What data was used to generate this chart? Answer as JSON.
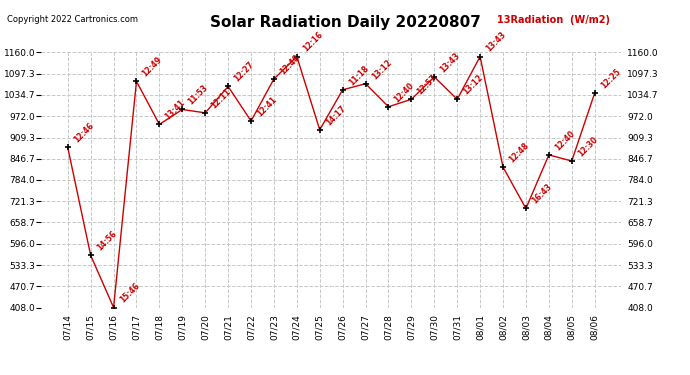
{
  "title": "Solar Radiation Daily 20220807",
  "copyright": "Copyright 2022 Cartronics.com",
  "legend_label": "13Radiation  (W/m2)",
  "background_color": "#ffffff",
  "grid_color": "#c8c8c8",
  "line_color": "#cc0000",
  "text_color": "#cc0000",
  "title_color": "#000000",
  "dates": [
    "07/14",
    "07/15",
    "07/16",
    "07/17",
    "07/18",
    "07/19",
    "07/20",
    "07/21",
    "07/22",
    "07/23",
    "07/24",
    "07/25",
    "07/26",
    "07/27",
    "07/28",
    "07/29",
    "07/30",
    "07/31",
    "08/01",
    "08/02",
    "08/03",
    "08/04",
    "08/05",
    "08/06"
  ],
  "values": [
    880.0,
    562.0,
    408.0,
    1075.0,
    948.0,
    992.0,
    982.0,
    1060.0,
    958.0,
    1082.0,
    1148.0,
    932.0,
    1050.0,
    1068.0,
    1000.0,
    1022.0,
    1088.0,
    1022.0,
    1148.0,
    822.0,
    700.0,
    858.0,
    840.0,
    1040.0
  ],
  "labels": [
    "12:46",
    "14:56",
    "15:46",
    "12:49",
    "13:41",
    "11:53",
    "12:11",
    "12:27",
    "12:41",
    "12:48",
    "12:16",
    "14:17",
    "11:18",
    "13:12",
    "12:40",
    "12:57",
    "13:43",
    "13:12",
    "13:43",
    "12:48",
    "16:43",
    "12:40",
    "12:30",
    "12:25"
  ],
  "ylim": [
    408.0,
    1160.0
  ],
  "yticks": [
    408.0,
    470.7,
    533.3,
    596.0,
    658.7,
    721.3,
    784.0,
    846.7,
    909.3,
    972.0,
    1034.7,
    1097.3,
    1160.0
  ]
}
